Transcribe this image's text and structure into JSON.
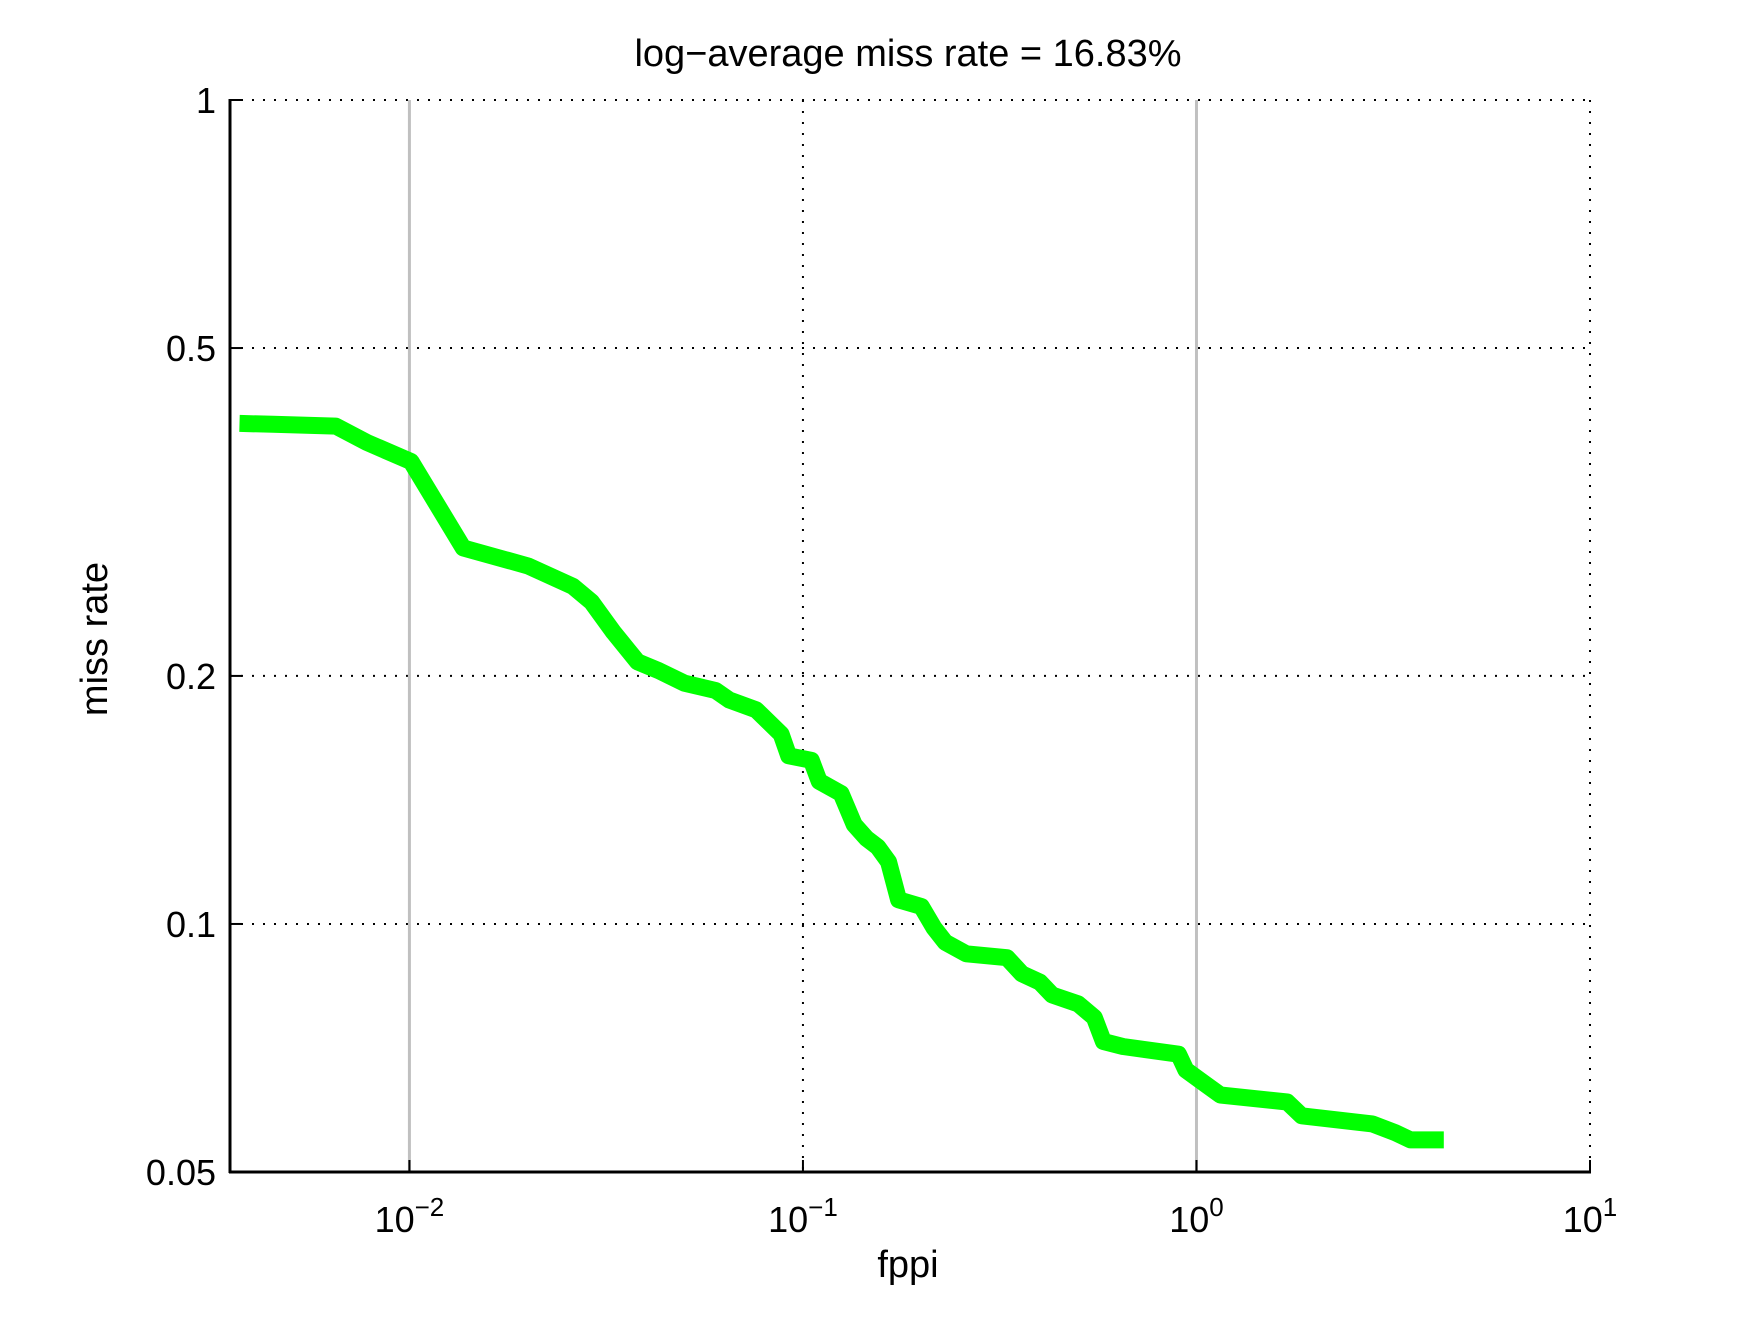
{
  "chart_data": {
    "type": "line",
    "title": "log−average miss rate = 16.83%",
    "xlabel": "fppi",
    "ylabel": "miss rate",
    "x_scale": "log",
    "y_scale": "log",
    "xlim": [
      0.0035,
      10
    ],
    "ylim": [
      0.05,
      1
    ],
    "x_ticks": [
      {
        "value": 0.01,
        "base": "10",
        "exp": "−2"
      },
      {
        "value": 0.1,
        "base": "10",
        "exp": "−1"
      },
      {
        "value": 1,
        "base": "10",
        "exp": "0"
      },
      {
        "value": 10,
        "base": "10",
        "exp": "1"
      }
    ],
    "y_ticks": [
      {
        "value": 1,
        "label": "1"
      },
      {
        "value": 0.5,
        "label": "0.5"
      },
      {
        "value": 0.2,
        "label": "0.2"
      },
      {
        "value": 0.1,
        "label": "0.1"
      },
      {
        "value": 0.05,
        "label": "0.05"
      }
    ],
    "grid": true,
    "reference_lines_x": [
      0.01,
      1
    ],
    "series": [
      {
        "color": "#00ff00",
        "points": [
          [
            0.0037,
            0.405
          ],
          [
            0.0045,
            0.404
          ],
          [
            0.0065,
            0.402
          ],
          [
            0.0078,
            0.384
          ],
          [
            0.0101,
            0.364
          ],
          [
            0.0137,
            0.286
          ],
          [
            0.02,
            0.272
          ],
          [
            0.026,
            0.257
          ],
          [
            0.029,
            0.246
          ],
          [
            0.033,
            0.226
          ],
          [
            0.038,
            0.208
          ],
          [
            0.043,
            0.203
          ],
          [
            0.05,
            0.196
          ],
          [
            0.06,
            0.192
          ],
          [
            0.065,
            0.187
          ],
          [
            0.076,
            0.182
          ],
          [
            0.088,
            0.17
          ],
          [
            0.092,
            0.16
          ],
          [
            0.105,
            0.158
          ],
          [
            0.11,
            0.149
          ],
          [
            0.125,
            0.144
          ],
          [
            0.135,
            0.132
          ],
          [
            0.145,
            0.127
          ],
          [
            0.155,
            0.124
          ],
          [
            0.165,
            0.119
          ],
          [
            0.175,
            0.107
          ],
          [
            0.2,
            0.105
          ],
          [
            0.215,
            0.099
          ],
          [
            0.23,
            0.095
          ],
          [
            0.26,
            0.092
          ],
          [
            0.33,
            0.091
          ],
          [
            0.36,
            0.087
          ],
          [
            0.4,
            0.085
          ],
          [
            0.43,
            0.082
          ],
          [
            0.5,
            0.08
          ],
          [
            0.55,
            0.077
          ],
          [
            0.58,
            0.072
          ],
          [
            0.65,
            0.071
          ],
          [
            0.9,
            0.0695
          ],
          [
            0.94,
            0.0665
          ],
          [
            1.05,
            0.064
          ],
          [
            1.15,
            0.062
          ],
          [
            1.7,
            0.0608
          ],
          [
            1.85,
            0.0585
          ],
          [
            2.8,
            0.0572
          ],
          [
            3.2,
            0.0558
          ],
          [
            3.5,
            0.0547
          ],
          [
            4.25,
            0.0547
          ]
        ]
      }
    ]
  }
}
